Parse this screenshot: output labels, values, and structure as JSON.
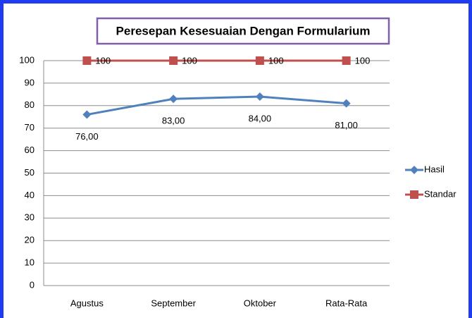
{
  "chart_data": {
    "type": "line",
    "title": "Peresepan Kesesuaian Dengan Formularium",
    "categories": [
      "Agustus",
      "September",
      "Oktober",
      "Rata-Rata"
    ],
    "series": [
      {
        "name": "Hasil",
        "color": "#4f81bd",
        "marker": "diamond",
        "values": [
          76,
          83,
          84,
          81
        ],
        "value_labels": [
          "76,00",
          "83,00",
          "84,00",
          "81,00"
        ]
      },
      {
        "name": "Standar",
        "color": "#c0504d",
        "marker": "square",
        "values": [
          100,
          100,
          100,
          100
        ]
      }
    ],
    "ylim": [
      0,
      100
    ],
    "yticks": [
      0,
      10,
      20,
      30,
      40,
      50,
      60,
      70,
      80,
      90,
      100
    ],
    "grid": true,
    "legend": "right"
  }
}
